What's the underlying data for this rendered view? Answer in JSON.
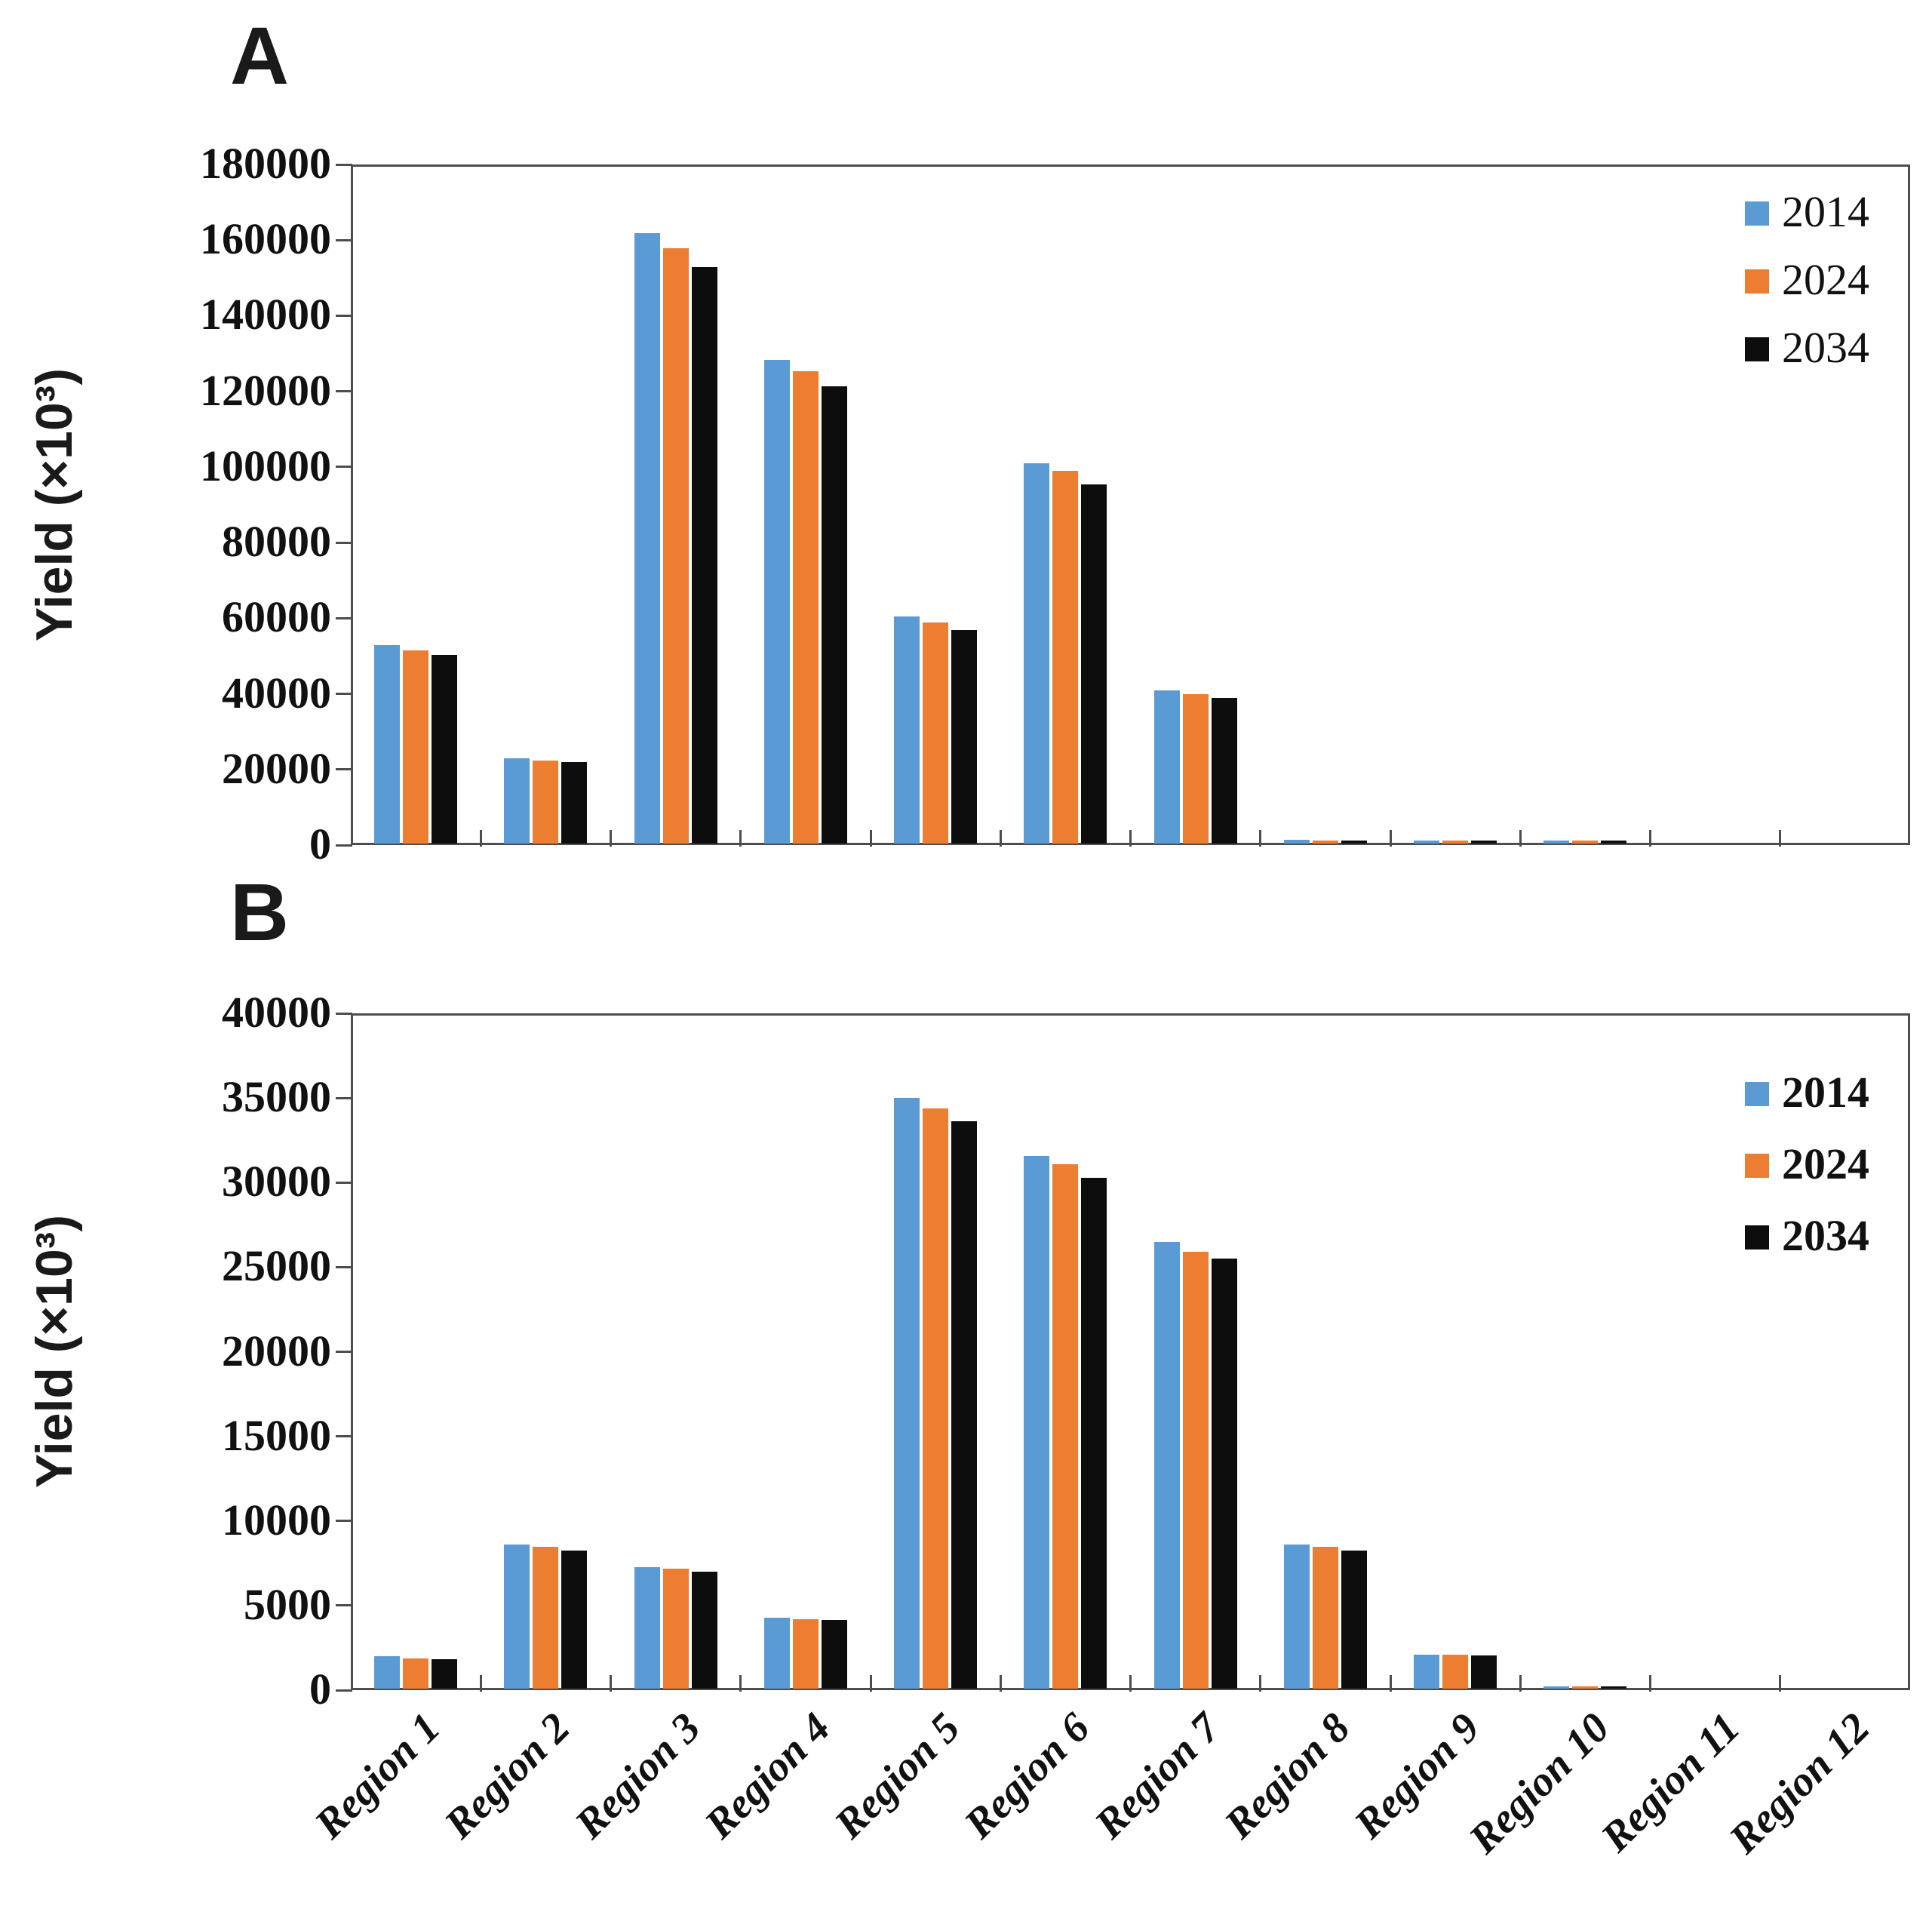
{
  "figure": {
    "panels": [
      {
        "letter": "A",
        "y_title": "Yield (×10³)"
      },
      {
        "letter": "B",
        "y_title": "Yield (×10³)"
      }
    ]
  },
  "colors": {
    "series_2014": "#5B9BD5",
    "series_2024": "#ED7D31",
    "series_2034": "#0d0d0d",
    "axis": "#4d4d4d"
  },
  "chart_data": [
    {
      "type": "bar",
      "panel": "A",
      "title": "",
      "xlabel": "",
      "ylabel": "Yield (×10³)",
      "ylim": [
        0,
        180000
      ],
      "ytick_step": 20000,
      "ytick_labels": [
        "0",
        "20000",
        "40000",
        "60000",
        "80000",
        "100000",
        "120000",
        "140000",
        "160000",
        "180000"
      ],
      "grid": false,
      "legend_position": "top-right",
      "show_x_labels": false,
      "categories": [
        "Region 1",
        "Region 2",
        "Region 3",
        "Region 4",
        "Region 5",
        "Region 6",
        "Region 7",
        "Region 8",
        "Region 9",
        "Region 10",
        "Region 11",
        "Region 12"
      ],
      "series": [
        {
          "name": "2014",
          "color": "#5B9BD5",
          "values": [
            52500,
            22500,
            161500,
            128000,
            60000,
            100500,
            40500,
            900,
            800,
            800,
            0,
            0
          ]
        },
        {
          "name": "2024",
          "color": "#ED7D31",
          "values": [
            51000,
            22000,
            157500,
            125000,
            58500,
            98500,
            39500,
            850,
            750,
            750,
            0,
            0
          ]
        },
        {
          "name": "2034",
          "color": "#0d0d0d",
          "values": [
            49800,
            21500,
            152500,
            121000,
            56500,
            95000,
            38500,
            800,
            700,
            700,
            0,
            0
          ]
        }
      ]
    },
    {
      "type": "bar",
      "panel": "B",
      "title": "",
      "xlabel": "",
      "ylabel": "Yield (×10³)",
      "ylim": [
        0,
        40000
      ],
      "ytick_step": 5000,
      "ytick_labels": [
        "0",
        "5000",
        "10000",
        "15000",
        "20000",
        "25000",
        "30000",
        "35000",
        "40000"
      ],
      "grid": false,
      "legend_position": "top-right",
      "show_x_labels": true,
      "categories": [
        "Region 1",
        "Region 2",
        "Region 3",
        "Region 4",
        "Region 5",
        "Region 6",
        "Region 7",
        "Region 8",
        "Region 9",
        "Region 10",
        "Region 11",
        "Region 12"
      ],
      "series": [
        {
          "name": "2014",
          "color": "#5B9BD5",
          "values": [
            1900,
            8500,
            7200,
            4200,
            34900,
            31500,
            26400,
            8500,
            2000,
            150,
            0,
            0
          ]
        },
        {
          "name": "2024",
          "color": "#ED7D31",
          "values": [
            1800,
            8400,
            7100,
            4100,
            34300,
            31000,
            25800,
            8400,
            2000,
            150,
            0,
            0
          ]
        },
        {
          "name": "2034",
          "color": "#0d0d0d",
          "values": [
            1750,
            8150,
            6900,
            4050,
            33550,
            30200,
            25400,
            8150,
            1950,
            120,
            0,
            0
          ]
        }
      ]
    }
  ]
}
